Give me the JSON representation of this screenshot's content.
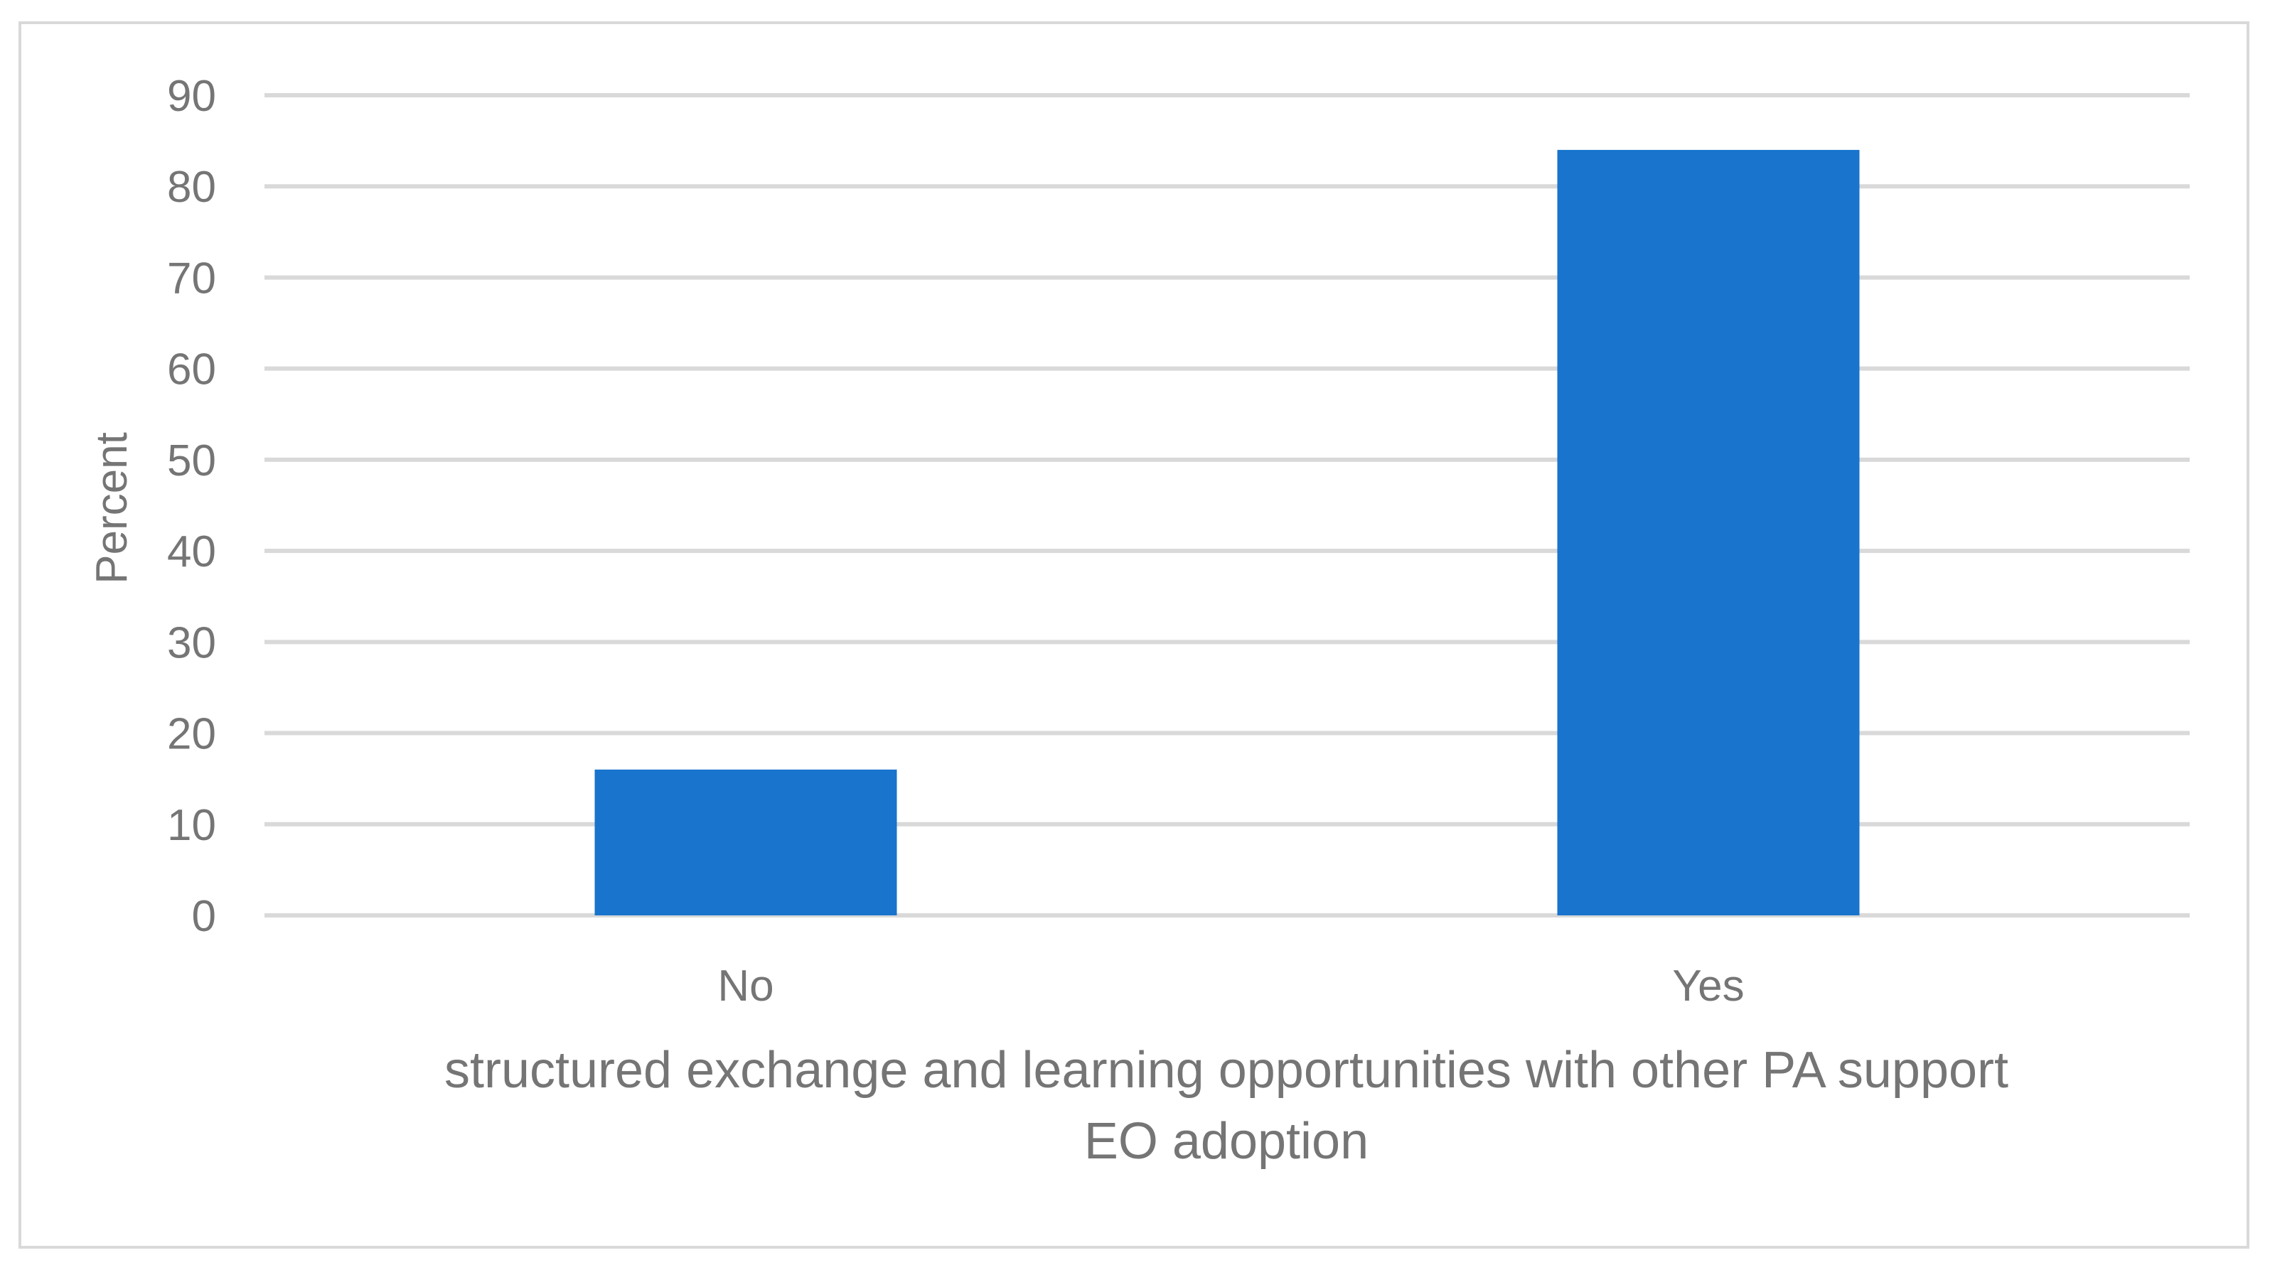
{
  "chart_data": {
    "type": "bar",
    "title": "",
    "categories": [
      "No",
      "Yes"
    ],
    "values": [
      16,
      84
    ],
    "ylabel": "Percent",
    "xlabel_lines": [
      "structured exchange and learning opportunities with other PA support",
      "EO adoption"
    ],
    "ylim": [
      0,
      90
    ],
    "yticks": [
      0,
      10,
      20,
      30,
      40,
      50,
      60,
      70,
      80,
      90
    ],
    "grid": true,
    "legend": "none",
    "bar_color": "#1874cd",
    "grid_color": "#d9d9d9",
    "text_color": "#757575"
  }
}
